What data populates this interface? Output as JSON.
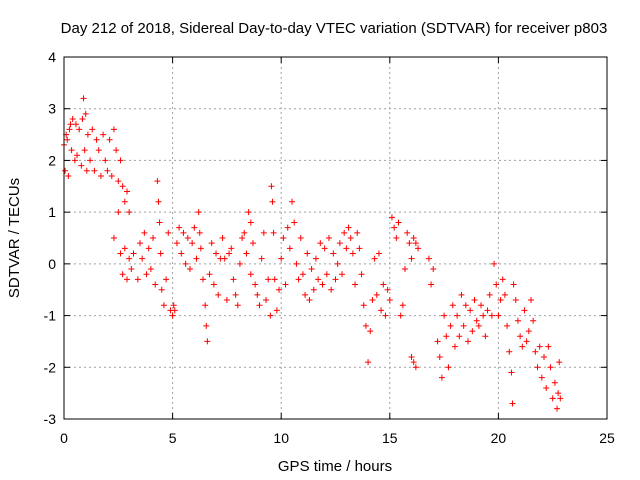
{
  "chart_data": {
    "type": "scatter",
    "title": "Day 212 of 2018, Sidereal Day-to-day VTEC variation (SDTVAR) for receiver p803",
    "xlabel": "GPS time / hours",
    "ylabel": "SDTVAR / TECUs",
    "xlim": [
      0,
      25
    ],
    "ylim": [
      -3,
      4
    ],
    "xticks": [
      "0",
      "5",
      "10",
      "15",
      "20",
      "25"
    ],
    "yticks": [
      "-3",
      "-2",
      "-1",
      "0",
      "1",
      "2",
      "3",
      "4"
    ],
    "grid": true,
    "marker": "+",
    "series": [
      {
        "name": "SDTVAR",
        "color": "#ff0000",
        "points": [
          [
            0.0,
            2.3
          ],
          [
            0.05,
            1.8
          ],
          [
            0.1,
            2.5
          ],
          [
            0.15,
            2.4
          ],
          [
            0.2,
            1.7
          ],
          [
            0.25,
            2.6
          ],
          [
            0.3,
            2.7
          ],
          [
            0.35,
            2.2
          ],
          [
            0.4,
            2.8
          ],
          [
            0.5,
            2.0
          ],
          [
            0.55,
            2.7
          ],
          [
            0.6,
            2.1
          ],
          [
            0.7,
            2.6
          ],
          [
            0.8,
            1.9
          ],
          [
            0.85,
            2.8
          ],
          [
            0.9,
            3.2
          ],
          [
            0.95,
            2.2
          ],
          [
            1.0,
            2.9
          ],
          [
            1.05,
            1.8
          ],
          [
            1.1,
            2.5
          ],
          [
            1.2,
            2.0
          ],
          [
            1.3,
            2.6
          ],
          [
            1.4,
            1.8
          ],
          [
            1.5,
            2.4
          ],
          [
            1.6,
            2.2
          ],
          [
            1.7,
            1.7
          ],
          [
            1.8,
            2.5
          ],
          [
            1.9,
            2.0
          ],
          [
            2.0,
            1.8
          ],
          [
            2.1,
            2.4
          ],
          [
            2.2,
            1.7
          ],
          [
            2.3,
            2.6
          ],
          [
            2.4,
            2.2
          ],
          [
            2.5,
            1.6
          ],
          [
            2.6,
            2.0
          ],
          [
            2.7,
            1.5
          ],
          [
            2.8,
            1.2
          ],
          [
            2.9,
            1.4
          ],
          [
            3.0,
            1.0
          ],
          [
            2.3,
            0.5
          ],
          [
            2.5,
            1.0
          ],
          [
            2.6,
            0.2
          ],
          [
            2.7,
            -0.2
          ],
          [
            2.8,
            0.3
          ],
          [
            2.9,
            -0.3
          ],
          [
            3.0,
            0.1
          ],
          [
            3.1,
            -0.1
          ],
          [
            3.2,
            0.2
          ],
          [
            3.4,
            -0.3
          ],
          [
            3.5,
            0.4
          ],
          [
            3.6,
            0.1
          ],
          [
            3.7,
            0.6
          ],
          [
            3.8,
            -0.2
          ],
          [
            3.9,
            0.3
          ],
          [
            4.0,
            -0.1
          ],
          [
            4.1,
            0.5
          ],
          [
            4.2,
            -0.4
          ],
          [
            4.3,
            1.6
          ],
          [
            4.35,
            1.2
          ],
          [
            4.4,
            0.8
          ],
          [
            4.45,
            0.2
          ],
          [
            4.5,
            -0.5
          ],
          [
            4.6,
            -0.8
          ],
          [
            4.7,
            -0.3
          ],
          [
            4.8,
            0.6
          ],
          [
            4.9,
            -0.9
          ],
          [
            5.0,
            -1.0
          ],
          [
            5.05,
            -0.8
          ],
          [
            5.1,
            -0.9
          ],
          [
            5.2,
            0.4
          ],
          [
            5.3,
            0.7
          ],
          [
            5.4,
            0.2
          ],
          [
            5.5,
            0.6
          ],
          [
            5.6,
            0.0
          ],
          [
            5.7,
            0.5
          ],
          [
            5.8,
            -0.1
          ],
          [
            5.9,
            0.4
          ],
          [
            6.0,
            0.7
          ],
          [
            6.1,
            0.1
          ],
          [
            6.2,
            1.0
          ],
          [
            6.25,
            0.6
          ],
          [
            6.3,
            0.3
          ],
          [
            6.4,
            -0.3
          ],
          [
            6.5,
            -0.8
          ],
          [
            6.55,
            -1.2
          ],
          [
            6.6,
            -1.5
          ],
          [
            6.7,
            -0.2
          ],
          [
            6.8,
            0.4
          ],
          [
            6.9,
            -0.4
          ],
          [
            7.0,
            0.2
          ],
          [
            7.1,
            -0.6
          ],
          [
            7.2,
            0.1
          ],
          [
            7.3,
            0.5
          ],
          [
            7.4,
            0.1
          ],
          [
            7.5,
            -0.7
          ],
          [
            7.6,
            0.2
          ],
          [
            7.7,
            0.3
          ],
          [
            7.8,
            -0.3
          ],
          [
            7.9,
            -0.6
          ],
          [
            8.0,
            -0.8
          ],
          [
            8.1,
            0.0
          ],
          [
            8.2,
            0.5
          ],
          [
            8.3,
            0.6
          ],
          [
            8.4,
            0.2
          ],
          [
            8.6,
            -0.2
          ],
          [
            8.8,
            -0.4
          ],
          [
            8.5,
            1.0
          ],
          [
            8.6,
            0.8
          ],
          [
            8.7,
            0.4
          ],
          [
            8.9,
            -0.6
          ],
          [
            9.0,
            -0.8
          ],
          [
            9.1,
            0.1
          ],
          [
            9.2,
            0.6
          ],
          [
            9.3,
            -0.7
          ],
          [
            9.4,
            -0.3
          ],
          [
            9.5,
            -1.0
          ],
          [
            9.55,
            1.5
          ],
          [
            9.6,
            1.2
          ],
          [
            9.65,
            0.6
          ],
          [
            9.7,
            -0.3
          ],
          [
            9.8,
            -0.9
          ],
          [
            9.9,
            -0.5
          ],
          [
            10.0,
            0.1
          ],
          [
            10.1,
            0.5
          ],
          [
            10.2,
            -0.4
          ],
          [
            10.3,
            0.7
          ],
          [
            10.4,
            0.3
          ],
          [
            10.5,
            1.2
          ],
          [
            10.6,
            0.8
          ],
          [
            10.7,
            0.0
          ],
          [
            10.8,
            -0.3
          ],
          [
            10.9,
            0.5
          ],
          [
            11.0,
            -0.2
          ],
          [
            11.1,
            -0.6
          ],
          [
            11.2,
            0.2
          ],
          [
            11.3,
            -0.7
          ],
          [
            11.4,
            -0.1
          ],
          [
            11.5,
            -0.5
          ],
          [
            11.6,
            0.1
          ],
          [
            11.7,
            -0.3
          ],
          [
            11.8,
            0.4
          ],
          [
            11.9,
            -0.4
          ],
          [
            12.0,
            0.3
          ],
          [
            12.1,
            -0.2
          ],
          [
            12.2,
            0.5
          ],
          [
            12.3,
            -0.5
          ],
          [
            12.4,
            0.2
          ],
          [
            12.5,
            -0.3
          ],
          [
            12.6,
            0.0
          ],
          [
            12.7,
            0.4
          ],
          [
            12.8,
            -0.2
          ],
          [
            12.9,
            0.6
          ],
          [
            13.0,
            0.3
          ],
          [
            13.1,
            0.7
          ],
          [
            13.2,
            0.5
          ],
          [
            13.3,
            0.2
          ],
          [
            13.4,
            -0.4
          ],
          [
            13.5,
            0.6
          ],
          [
            13.6,
            0.3
          ],
          [
            13.7,
            -0.2
          ],
          [
            13.8,
            -0.8
          ],
          [
            13.9,
            -1.2
          ],
          [
            14.0,
            -1.9
          ],
          [
            14.1,
            -1.3
          ],
          [
            14.2,
            -0.7
          ],
          [
            14.3,
            0.1
          ],
          [
            14.4,
            -0.6
          ],
          [
            14.5,
            0.2
          ],
          [
            14.6,
            -0.9
          ],
          [
            14.7,
            -0.4
          ],
          [
            14.8,
            -1.0
          ],
          [
            14.9,
            -0.5
          ],
          [
            15.0,
            -0.7
          ],
          [
            15.1,
            0.9
          ],
          [
            15.2,
            0.7
          ],
          [
            15.3,
            0.5
          ],
          [
            15.4,
            0.8
          ],
          [
            15.5,
            -1.0
          ],
          [
            15.6,
            -0.8
          ],
          [
            15.7,
            -0.1
          ],
          [
            15.8,
            0.6
          ],
          [
            15.9,
            0.4
          ],
          [
            16.0,
            0.1
          ],
          [
            16.1,
            0.5
          ],
          [
            16.2,
            0.4
          ],
          [
            16.0,
            -1.8
          ],
          [
            16.1,
            -1.9
          ],
          [
            16.2,
            -2.0
          ],
          [
            16.3,
            0.3
          ],
          [
            16.8,
            0.1
          ],
          [
            16.9,
            -0.4
          ],
          [
            17.0,
            -0.1
          ],
          [
            17.2,
            -1.5
          ],
          [
            17.3,
            -1.8
          ],
          [
            17.4,
            -2.2
          ],
          [
            17.5,
            -1.0
          ],
          [
            17.6,
            -1.4
          ],
          [
            17.7,
            -2.0
          ],
          [
            17.8,
            -1.2
          ],
          [
            17.9,
            -0.8
          ],
          [
            18.0,
            -1.6
          ],
          [
            18.1,
            -1.0
          ],
          [
            18.2,
            -1.4
          ],
          [
            18.3,
            -0.6
          ],
          [
            18.4,
            -1.2
          ],
          [
            18.5,
            -0.8
          ],
          [
            18.6,
            -1.5
          ],
          [
            18.7,
            -0.9
          ],
          [
            18.8,
            -1.3
          ],
          [
            18.9,
            -0.7
          ],
          [
            19.0,
            -1.1
          ],
          [
            19.1,
            -1.2
          ],
          [
            19.2,
            -0.8
          ],
          [
            19.3,
            -1.0
          ],
          [
            19.4,
            -1.4
          ],
          [
            19.5,
            -0.9
          ],
          [
            19.6,
            -0.6
          ],
          [
            19.7,
            -1.0
          ],
          [
            19.8,
            0.0
          ],
          [
            19.9,
            -0.4
          ],
          [
            20.0,
            -1.0
          ],
          [
            20.1,
            -0.7
          ],
          [
            20.2,
            -0.3
          ],
          [
            20.3,
            -0.6
          ],
          [
            20.4,
            -1.2
          ],
          [
            20.5,
            -1.7
          ],
          [
            20.6,
            -2.1
          ],
          [
            20.65,
            -2.7
          ],
          [
            20.7,
            -0.4
          ],
          [
            20.8,
            -0.7
          ],
          [
            20.9,
            -1.1
          ],
          [
            21.0,
            -1.4
          ],
          [
            21.1,
            -1.6
          ],
          [
            21.2,
            -0.9
          ],
          [
            21.3,
            -1.5
          ],
          [
            21.4,
            -1.3
          ],
          [
            21.5,
            -0.7
          ],
          [
            21.6,
            -1.1
          ],
          [
            21.7,
            -1.7
          ],
          [
            21.8,
            -2.0
          ],
          [
            21.9,
            -1.6
          ],
          [
            22.0,
            -2.2
          ],
          [
            22.1,
            -1.8
          ],
          [
            22.2,
            -2.4
          ],
          [
            22.3,
            -1.6
          ],
          [
            22.4,
            -2.0
          ],
          [
            22.5,
            -2.6
          ],
          [
            22.6,
            -2.3
          ],
          [
            22.7,
            -2.8
          ],
          [
            22.75,
            -2.5
          ],
          [
            22.8,
            -1.9
          ],
          [
            22.85,
            -2.6
          ]
        ]
      }
    ]
  }
}
